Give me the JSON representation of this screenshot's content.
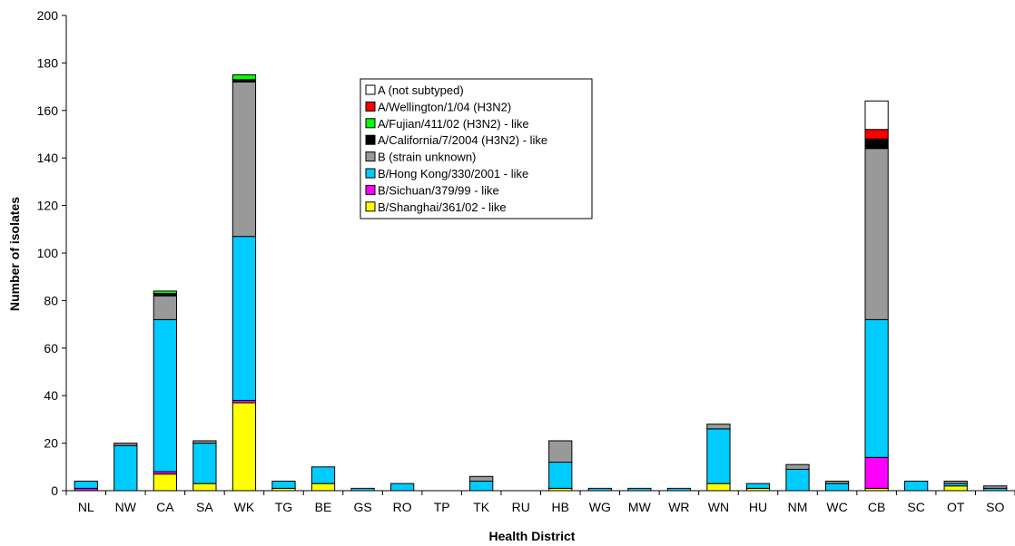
{
  "chart_data": {
    "type": "bar",
    "stacked": true,
    "xlabel": "Health District",
    "ylabel": "Number of isolates",
    "ylim": [
      0,
      200
    ],
    "yticks": [
      0,
      20,
      40,
      60,
      80,
      100,
      120,
      140,
      160,
      180,
      200
    ],
    "grid": false,
    "legend_position": "top-center",
    "categories": [
      "NL",
      "NW",
      "CA",
      "SA",
      "WK",
      "TG",
      "BE",
      "GS",
      "RO",
      "TP",
      "TK",
      "RU",
      "HB",
      "WG",
      "MW",
      "WR",
      "WN",
      "HU",
      "NM",
      "WC",
      "CB",
      "SC",
      "OT",
      "SO"
    ],
    "series": [
      {
        "name": "B/Shanghai/361/02 - like",
        "color": "#ffff00",
        "values": [
          0,
          0,
          7,
          3,
          37,
          1,
          3,
          0,
          0,
          0,
          0,
          0,
          1,
          0,
          0,
          0,
          3,
          1,
          0,
          0,
          1,
          0,
          2,
          0
        ]
      },
      {
        "name": "B/Sichuan/379/99 - like",
        "color": "#ff00ff",
        "values": [
          1,
          0,
          1,
          0,
          1,
          0,
          0,
          0,
          0,
          0,
          0,
          0,
          0,
          0,
          0,
          0,
          0,
          0,
          0,
          0,
          13,
          0,
          0,
          0
        ]
      },
      {
        "name": "B/Hong Kong/330/2001 - like",
        "color": "#00ccff",
        "values": [
          3,
          19,
          64,
          17,
          69,
          3,
          7,
          1,
          3,
          0,
          4,
          0,
          11,
          1,
          1,
          1,
          23,
          2,
          9,
          3,
          58,
          4,
          1,
          1
        ]
      },
      {
        "name": "B (strain unknown)",
        "color": "#999999",
        "values": [
          0,
          1,
          10,
          1,
          65,
          0,
          0,
          0,
          0,
          0,
          2,
          0,
          9,
          0,
          0,
          0,
          2,
          0,
          2,
          1,
          72,
          0,
          1,
          1
        ]
      },
      {
        "name": "A/California/7/2004 (H3N2) - like",
        "color": "#000000",
        "values": [
          0,
          0,
          1,
          0,
          1,
          0,
          0,
          0,
          0,
          0,
          0,
          0,
          0,
          0,
          0,
          0,
          0,
          0,
          0,
          0,
          4,
          0,
          0,
          0
        ]
      },
      {
        "name": "A/Fujian/411/02 (H3N2) - like",
        "color": "#00ff00",
        "values": [
          0,
          0,
          1,
          0,
          2,
          0,
          0,
          0,
          0,
          0,
          0,
          0,
          0,
          0,
          0,
          0,
          0,
          0,
          0,
          0,
          0,
          0,
          0,
          0
        ]
      },
      {
        "name": "A/Wellington/1/04 (H3N2)",
        "color": "#ff0000",
        "values": [
          0,
          0,
          0,
          0,
          0,
          0,
          0,
          0,
          0,
          0,
          0,
          0,
          0,
          0,
          0,
          0,
          0,
          0,
          0,
          0,
          4,
          0,
          0,
          0
        ]
      },
      {
        "name": "A (not subtyped)",
        "color": "#ffffff",
        "values": [
          0,
          0,
          0,
          0,
          0,
          0,
          0,
          0,
          0,
          0,
          0,
          0,
          0,
          0,
          0,
          0,
          0,
          0,
          0,
          0,
          12,
          0,
          0,
          0
        ]
      }
    ],
    "legend_order": [
      "A (not subtyped)",
      "A/Wellington/1/04 (H3N2)",
      "A/Fujian/411/02 (H3N2) - like",
      "A/California/7/2004 (H3N2) - like",
      "B (strain unknown)",
      "B/Hong Kong/330/2001 - like",
      "B/Sichuan/379/99 - like",
      "B/Shanghai/361/02 - like"
    ]
  }
}
